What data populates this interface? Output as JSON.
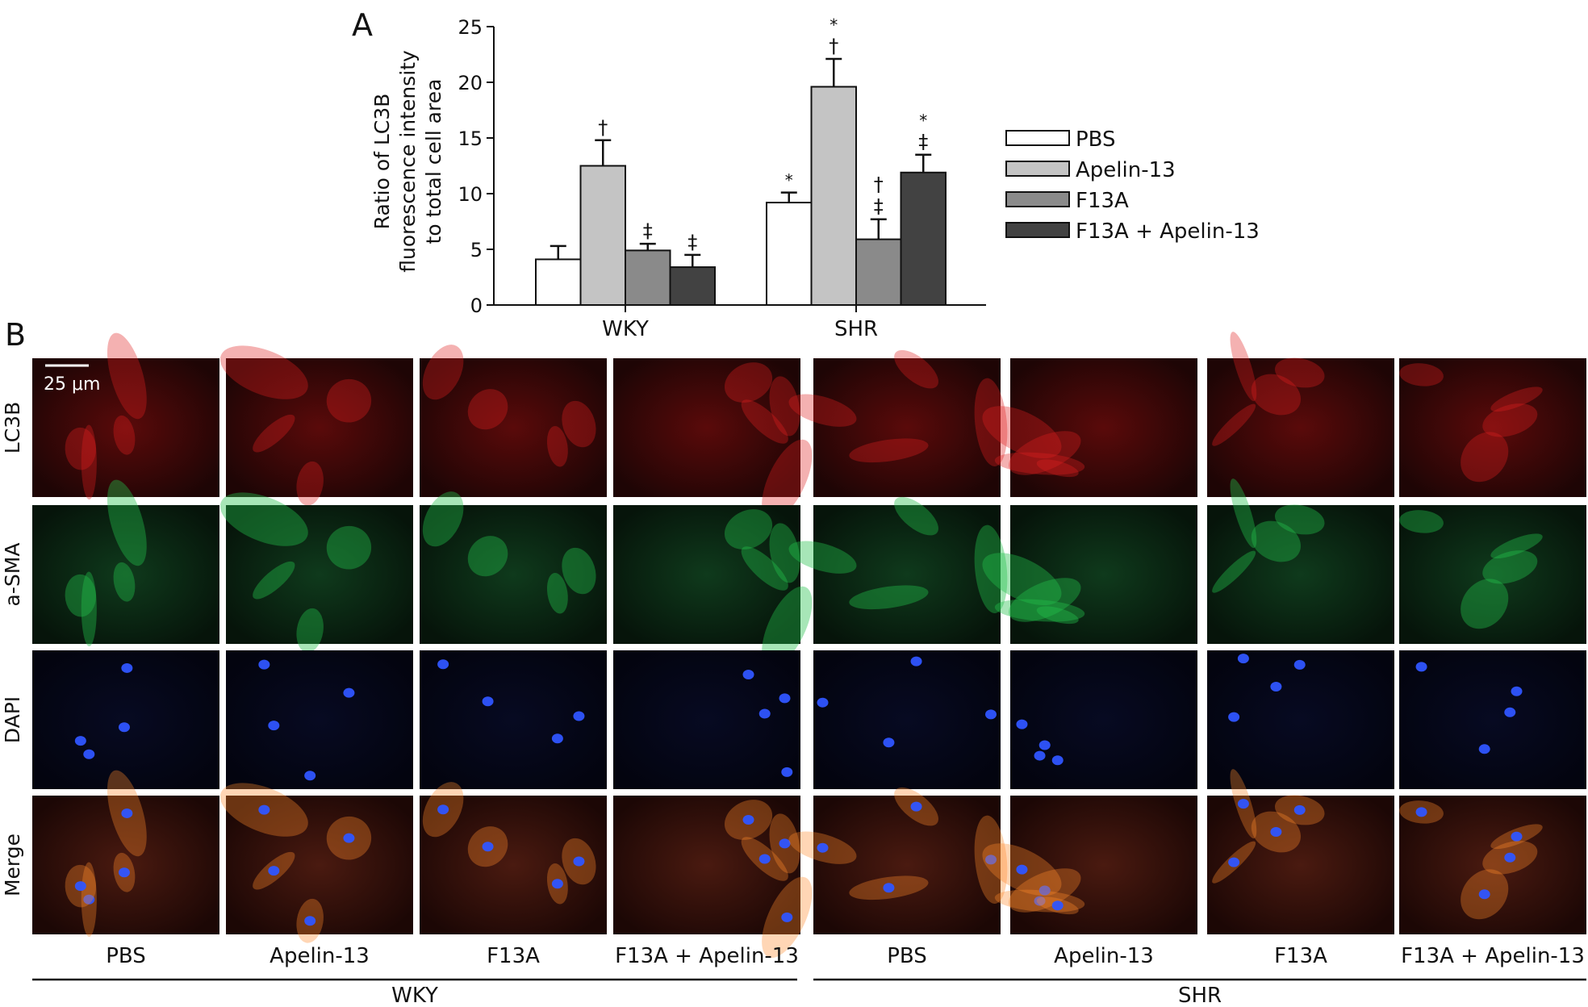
{
  "panel_a_label": "A",
  "panel_b_label": "B",
  "chart_data": {
    "type": "bar",
    "categories": [
      "WKY",
      "SHR"
    ],
    "ylabel": "Ratio of LC3B fluorescence intensity to total cell area",
    "ylabel_lines": [
      "Ratio of LC3B",
      "fluorescence intensity",
      "to total cell area"
    ],
    "ylim": [
      0,
      25
    ],
    "yticks": [
      0,
      5,
      10,
      15,
      20,
      25
    ],
    "legend_position": "right",
    "grid": false,
    "series": [
      {
        "name": "PBS",
        "color": "#ffffff",
        "values": [
          4.1,
          9.2
        ],
        "errors": [
          1.2,
          0.9
        ],
        "annotations": [
          [],
          [
            "*"
          ]
        ]
      },
      {
        "name": "Apelin-13",
        "color": "#c4c4c4",
        "values": [
          12.5,
          19.6
        ],
        "errors": [
          2.3,
          2.5
        ],
        "annotations": [
          [
            "†"
          ],
          [
            "†",
            "*"
          ]
        ]
      },
      {
        "name": "F13A",
        "color": "#8a8a8a",
        "values": [
          4.9,
          5.9
        ],
        "errors": [
          0.6,
          1.8
        ],
        "annotations": [
          [
            "‡"
          ],
          [
            "‡",
            "†"
          ]
        ]
      },
      {
        "name": "F13A + Apelin-13",
        "color": "#424242",
        "values": [
          3.4,
          11.9
        ],
        "errors": [
          1.1,
          1.6
        ],
        "annotations": [
          [
            "‡"
          ],
          [
            "‡",
            "*"
          ]
        ]
      }
    ]
  },
  "microscopy": {
    "scale_bar": "25 μm",
    "rows": [
      "LC3B",
      "a-SMA",
      "DAPI",
      "Merge"
    ],
    "row_colors": [
      "#e02020",
      "#22c04a",
      "#2f55ff",
      "#ff8a2a"
    ],
    "columns": [
      "PBS",
      "Apelin-13",
      "F13A",
      "F13A + Apelin-13",
      "PBS",
      "Apelin-13",
      "F13A",
      "F13A + Apelin-13"
    ],
    "groups": [
      "WKY",
      "SHR"
    ]
  }
}
